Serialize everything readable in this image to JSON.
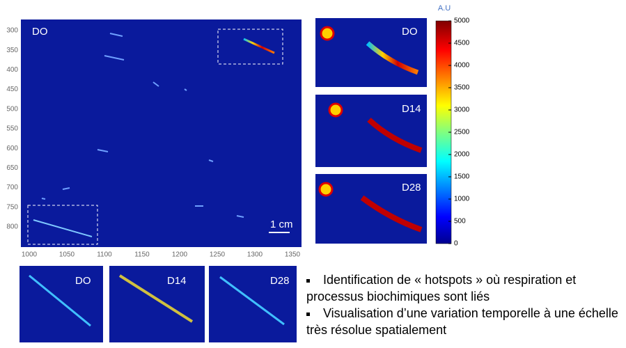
{
  "main_map": {
    "label": "DO",
    "scale_bar": "1 cm",
    "yticks": [
      300,
      350,
      400,
      450,
      500,
      550,
      600,
      650,
      700,
      750,
      800
    ],
    "xticks": [
      1000,
      1050,
      1100,
      1150,
      1200,
      1250,
      1300,
      1350
    ]
  },
  "right_panels": [
    {
      "label": "DO"
    },
    {
      "label": "D14"
    },
    {
      "label": "D28"
    }
  ],
  "bottom_panels": [
    {
      "label": "DO"
    },
    {
      "label": "D14"
    },
    {
      "label": "D28"
    }
  ],
  "colorbar": {
    "unit": "A.U",
    "range": [
      0,
      5000
    ],
    "ticks": [
      0,
      500,
      1000,
      1500,
      2000,
      2500,
      3000,
      3500,
      4000,
      4500,
      5000
    ]
  },
  "bullets": [
    "Identification de « hotspots » où respiration et processus biochimiques sont liés",
    "Visualisation d’une variation temporelle à une échelle très résolue spatialement"
  ]
}
